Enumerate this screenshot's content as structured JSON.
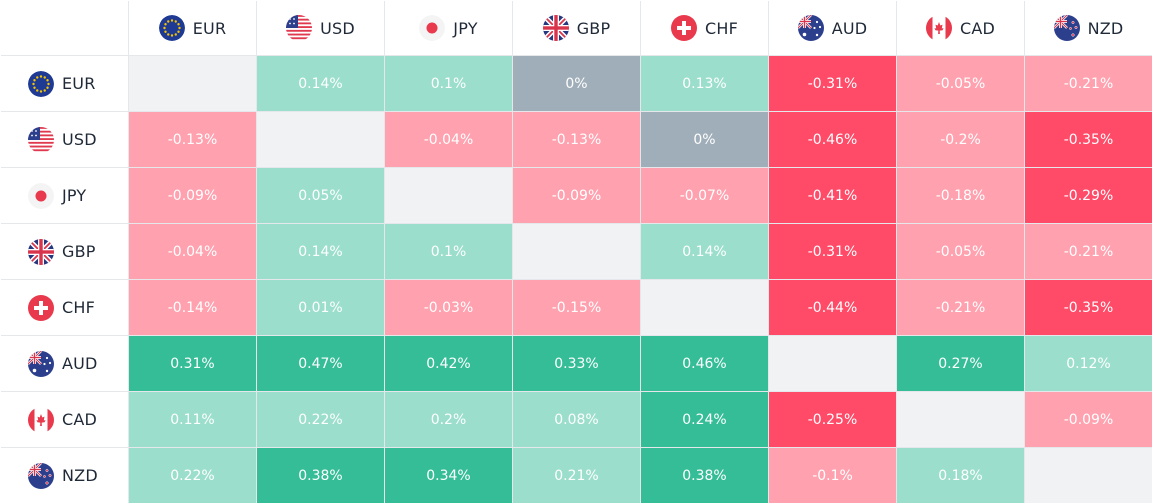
{
  "currencies": [
    {
      "code": "EUR",
      "flag": "eu-flag-icon"
    },
    {
      "code": "USD",
      "flag": "us-flag-icon"
    },
    {
      "code": "JPY",
      "flag": "jp-flag-icon"
    },
    {
      "code": "GBP",
      "flag": "gb-flag-icon"
    },
    {
      "code": "CHF",
      "flag": "ch-flag-icon"
    },
    {
      "code": "AUD",
      "flag": "au-flag-icon"
    },
    {
      "code": "CAD",
      "flag": "ca-flag-icon"
    },
    {
      "code": "NZD",
      "flag": "nz-flag-icon"
    }
  ],
  "colors": {
    "strong_positive": "#34bd97",
    "positive": "#9adecb",
    "neutral": "#a0aeb9",
    "negative": "#ffa1ae",
    "strong_negative": "#ff4a68",
    "empty": "#f1f2f4"
  },
  "matrix": [
    [
      null,
      "0.14%",
      "0.1%",
      "0%",
      "0.13%",
      "-0.31%",
      "-0.05%",
      "-0.21%"
    ],
    [
      "-0.13%",
      null,
      "-0.04%",
      "-0.13%",
      "0%",
      "-0.46%",
      "-0.2%",
      "-0.35%"
    ],
    [
      "-0.09%",
      "0.05%",
      null,
      "-0.09%",
      "-0.07%",
      "-0.41%",
      "-0.18%",
      "-0.29%"
    ],
    [
      "-0.04%",
      "0.14%",
      "0.1%",
      null,
      "0.14%",
      "-0.31%",
      "-0.05%",
      "-0.21%"
    ],
    [
      "-0.14%",
      "0.01%",
      "-0.03%",
      "-0.15%",
      null,
      "-0.44%",
      "-0.21%",
      "-0.35%"
    ],
    [
      "0.31%",
      "0.47%",
      "0.42%",
      "0.33%",
      "0.46%",
      null,
      "0.27%",
      "0.12%"
    ],
    [
      "0.11%",
      "0.22%",
      "0.2%",
      "0.08%",
      "0.24%",
      "-0.25%",
      null,
      "-0.09%"
    ],
    [
      "0.22%",
      "0.38%",
      "0.34%",
      "0.21%",
      "0.38%",
      "-0.1%",
      "0.18%",
      null
    ]
  ],
  "levels": [
    [
      null,
      "positive",
      "positive",
      "neutral",
      "positive",
      "strong_negative",
      "negative",
      "negative"
    ],
    [
      "negative",
      null,
      "negative",
      "negative",
      "neutral",
      "strong_negative",
      "negative",
      "strong_negative"
    ],
    [
      "negative",
      "positive",
      null,
      "negative",
      "negative",
      "strong_negative",
      "negative",
      "strong_negative"
    ],
    [
      "negative",
      "positive",
      "positive",
      null,
      "positive",
      "strong_negative",
      "negative",
      "negative"
    ],
    [
      "negative",
      "positive",
      "negative",
      "negative",
      null,
      "strong_negative",
      "negative",
      "strong_negative"
    ],
    [
      "strong_positive",
      "strong_positive",
      "strong_positive",
      "strong_positive",
      "strong_positive",
      null,
      "strong_positive",
      "positive"
    ],
    [
      "positive",
      "positive",
      "positive",
      "positive",
      "strong_positive",
      "strong_negative",
      null,
      "negative"
    ],
    [
      "positive",
      "strong_positive",
      "strong_positive",
      "positive",
      "strong_positive",
      "negative",
      "positive",
      null
    ]
  ]
}
